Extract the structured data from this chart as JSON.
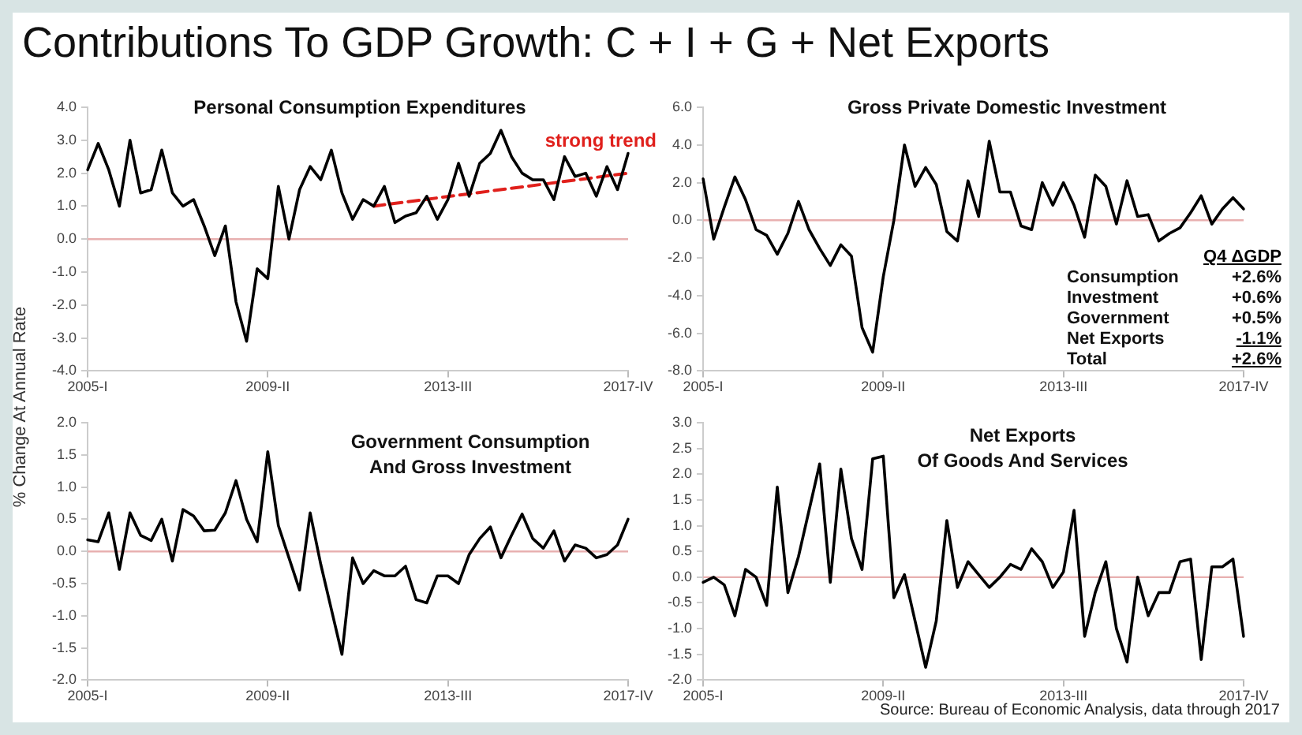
{
  "chart_data": [
    {
      "type": "other",
      "title": "Contributions To GDP Growth: C + I + G + Net Exports",
      "annotations": [
        "Source: Bureau of Economic Analysis, data through 2017"
      ]
    },
    {
      "type": "line",
      "title": "Personal Consumption Expenditures",
      "ylabel": "% Change At Annual Rate",
      "categories": [
        "2005-I",
        null,
        null,
        null,
        null,
        null,
        null,
        null,
        null,
        null,
        null,
        null,
        null,
        null,
        null,
        null,
        null,
        "2009-II",
        null,
        null,
        null,
        null,
        null,
        null,
        null,
        null,
        null,
        null,
        null,
        null,
        null,
        null,
        null,
        null,
        "2013-III",
        null,
        null,
        null,
        null,
        null,
        null,
        null,
        null,
        null,
        null,
        null,
        null,
        null,
        null,
        null,
        null,
        "2017-IV"
      ],
      "series": [
        {
          "color": "#000000",
          "values": [
            2.1,
            2.9,
            2.1,
            1.0,
            3.0,
            1.4,
            1.5,
            2.7,
            1.4,
            1.0,
            1.2,
            0.4,
            -0.5,
            0.4,
            -1.9,
            -3.1,
            -0.9,
            -1.2,
            1.6,
            0.0,
            1.5,
            2.2,
            1.8,
            2.7,
            1.4,
            0.6,
            1.2,
            1.0,
            1.6,
            0.5,
            0.7,
            0.8,
            1.3,
            0.6,
            1.2,
            2.3,
            1.3,
            2.3,
            2.6,
            3.3,
            2.5,
            2.0,
            1.8,
            1.8,
            1.2,
            2.5,
            1.9,
            2.0,
            1.3,
            2.2,
            1.5,
            2.6
          ]
        },
        {
          "name": "strong trend",
          "type": "line",
          "line_style": "dashed",
          "color": "#e0201c",
          "values": [
            null,
            null,
            null,
            null,
            null,
            null,
            null,
            null,
            null,
            null,
            null,
            null,
            null,
            null,
            null,
            null,
            null,
            null,
            null,
            null,
            null,
            null,
            null,
            null,
            null,
            null,
            null,
            1.0,
            null,
            null,
            null,
            null,
            null,
            null,
            null,
            null,
            null,
            null,
            null,
            null,
            null,
            null,
            null,
            null,
            null,
            null,
            null,
            null,
            null,
            null,
            null,
            2.0
          ]
        }
      ],
      "ref_lines": [
        {
          "axis": "y",
          "value": 0,
          "color": "#e8b0b0"
        }
      ],
      "ylim": [
        -4,
        4
      ],
      "yticks": [
        {
          "value": -4,
          "label": "-4.0"
        },
        {
          "value": -3,
          "label": "-3.0"
        },
        {
          "value": -2,
          "label": "-2.0"
        },
        {
          "value": -1,
          "label": "-1.0"
        },
        {
          "value": 0,
          "label": "0.0"
        },
        {
          "value": 1,
          "label": "1.0"
        },
        {
          "value": 2,
          "label": "2.0"
        },
        {
          "value": 3,
          "label": "3.0"
        },
        {
          "value": 4,
          "label": "4.0"
        }
      ]
    },
    {
      "type": "line",
      "title": "Gross Private Domestic Investment",
      "categories": [
        "2005-I",
        null,
        null,
        null,
        null,
        null,
        null,
        null,
        null,
        null,
        null,
        null,
        null,
        null,
        null,
        null,
        null,
        "2009-II",
        null,
        null,
        null,
        null,
        null,
        null,
        null,
        null,
        null,
        null,
        null,
        null,
        null,
        null,
        null,
        null,
        "2013-III",
        null,
        null,
        null,
        null,
        null,
        null,
        null,
        null,
        null,
        null,
        null,
        null,
        null,
        null,
        null,
        null,
        "2017-IV"
      ],
      "series": [
        {
          "color": "#000000",
          "values": [
            2.2,
            -1.0,
            0.7,
            2.3,
            1.1,
            -0.5,
            -0.8,
            -1.8,
            -0.7,
            1.0,
            -0.5,
            -1.5,
            -2.4,
            -1.3,
            -1.9,
            -5.7,
            -7.0,
            -3.0,
            0.0,
            4.0,
            1.8,
            2.8,
            1.9,
            -0.6,
            -1.1,
            2.1,
            0.2,
            4.2,
            1.5,
            1.5,
            -0.3,
            -0.5,
            2.0,
            0.8,
            2.0,
            0.8,
            -0.9,
            2.4,
            1.8,
            -0.2,
            2.1,
            0.2,
            0.3,
            -1.1,
            -0.7,
            -0.4,
            0.4,
            1.3,
            -0.2,
            0.6,
            1.2,
            0.6
          ]
        }
      ],
      "ref_lines": [
        {
          "axis": "y",
          "value": 0,
          "color": "#e8b0b0"
        }
      ],
      "ylim": [
        -8,
        6
      ],
      "yticks": [
        {
          "value": -8,
          "label": "-8.0"
        },
        {
          "value": -6,
          "label": "-6.0"
        },
        {
          "value": -4,
          "label": "-4.0"
        },
        {
          "value": -2,
          "label": "-2.0"
        },
        {
          "value": 0,
          "label": "0.0"
        },
        {
          "value": 2,
          "label": "2.0"
        },
        {
          "value": 4,
          "label": "4.0"
        },
        {
          "value": 6,
          "label": "6.0"
        }
      ]
    },
    {
      "type": "line",
      "title": "Government Consumption\nAnd Gross Investment",
      "categories": [
        "2005-I",
        null,
        null,
        null,
        null,
        null,
        null,
        null,
        null,
        null,
        null,
        null,
        null,
        null,
        null,
        null,
        null,
        "2009-II",
        null,
        null,
        null,
        null,
        null,
        null,
        null,
        null,
        null,
        null,
        null,
        null,
        null,
        null,
        null,
        null,
        "2013-III",
        null,
        null,
        null,
        null,
        null,
        null,
        null,
        null,
        null,
        null,
        null,
        null,
        null,
        null,
        null,
        null,
        "2017-IV"
      ],
      "series": [
        {
          "color": "#000000",
          "values": [
            0.18,
            0.15,
            0.6,
            -0.28,
            0.6,
            0.25,
            0.17,
            0.5,
            -0.15,
            0.65,
            0.55,
            0.32,
            0.33,
            0.6,
            1.1,
            0.5,
            0.15,
            1.55,
            0.4,
            -0.1,
            -0.6,
            0.6,
            -0.2,
            -0.9,
            -1.6,
            -0.1,
            -0.5,
            -0.3,
            -0.38,
            -0.38,
            -0.23,
            -0.75,
            -0.8,
            -0.38,
            -0.38,
            -0.5,
            -0.05,
            0.2,
            0.38,
            -0.1,
            0.25,
            0.58,
            0.2,
            0.05,
            0.32,
            -0.15,
            0.1,
            0.05,
            -0.1,
            -0.05,
            0.1,
            0.5
          ]
        }
      ],
      "ref_lines": [
        {
          "axis": "y",
          "value": 0,
          "color": "#e8b0b0"
        }
      ],
      "ylim": [
        -2,
        2
      ],
      "yticks": [
        {
          "value": -2,
          "label": "-2.0"
        },
        -1.5,
        {
          "value": -1,
          "label": "-1.0"
        },
        -0.5,
        {
          "value": 0,
          "label": "0.0"
        },
        0.5,
        {
          "value": 1,
          "label": "1.0"
        },
        1.5,
        {
          "value": 2,
          "label": "2.0"
        }
      ]
    },
    {
      "type": "line",
      "title": "Net Exports\nOf Goods And Services",
      "categories": [
        "2005-I",
        null,
        null,
        null,
        null,
        null,
        null,
        null,
        null,
        null,
        null,
        null,
        null,
        null,
        null,
        null,
        null,
        "2009-II",
        null,
        null,
        null,
        null,
        null,
        null,
        null,
        null,
        null,
        null,
        null,
        null,
        null,
        null,
        null,
        null,
        "2013-III",
        null,
        null,
        null,
        null,
        null,
        null,
        null,
        null,
        null,
        null,
        null,
        null,
        null,
        null,
        null,
        null,
        "2017-IV"
      ],
      "series": [
        {
          "color": "#000000",
          "values": [
            -0.1,
            0.0,
            -0.15,
            -0.75,
            0.15,
            0.0,
            -0.55,
            1.75,
            -0.3,
            0.4,
            1.3,
            2.2,
            -0.1,
            2.1,
            0.75,
            0.15,
            2.3,
            2.35,
            -0.4,
            0.05,
            -0.85,
            -1.75,
            -0.85,
            1.1,
            -0.2,
            0.3,
            0.05,
            -0.2,
            0.0,
            0.25,
            0.15,
            0.55,
            0.3,
            -0.2,
            0.1,
            1.3,
            -1.15,
            -0.3,
            0.3,
            -1.0,
            -1.65,
            0.0,
            -0.75,
            -0.3,
            -0.3,
            0.3,
            0.35,
            -1.6,
            0.2,
            0.2,
            0.35,
            -1.15
          ]
        }
      ],
      "ref_lines": [
        {
          "axis": "y",
          "value": 0,
          "color": "#e8b0b0"
        }
      ],
      "ylim": [
        -2,
        3
      ],
      "yticks": [
        {
          "value": -2,
          "label": "-2.0"
        },
        -1.5,
        {
          "value": -1,
          "label": "-1.0"
        },
        -0.5,
        {
          "value": 0,
          "label": "0.0"
        },
        0.5,
        {
          "value": 1,
          "label": "1.0"
        },
        1.5,
        {
          "value": 2,
          "label": "2.0"
        },
        2.5,
        {
          "value": 3,
          "label": "3.0"
        }
      ]
    },
    {
      "type": "other",
      "title": "Q4 ΔGDP",
      "categories": [
        "Consumption",
        "Investment",
        "Government",
        "Net Exports",
        "Total"
      ],
      "value_labels": [
        "+2.6%",
        "+0.6%",
        "+0.5%",
        "-1.1%",
        "+2.6%"
      ]
    }
  ]
}
